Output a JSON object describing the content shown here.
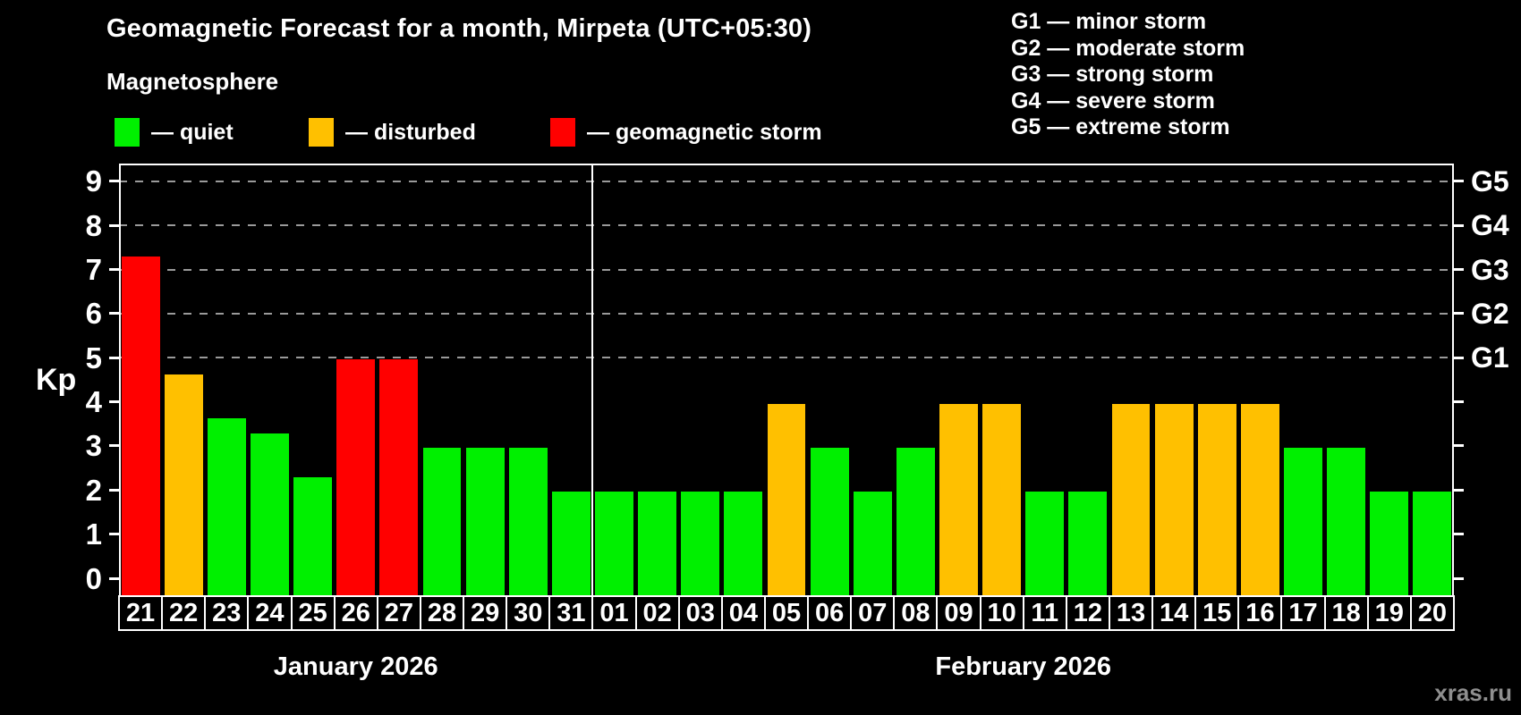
{
  "title": "Geomagnetic Forecast for a month, Mirpeta (UTC+05:30)",
  "subtitle": "Magnetosphere",
  "colors": {
    "quiet": "#00f000",
    "disturbed": "#ffc000",
    "storm": "#ff0000",
    "grid": "#9a9a9a",
    "axis": "#ffffff",
    "watermark": "#8f8f8f"
  },
  "legend": {
    "items": [
      {
        "key": "quiet",
        "label": "— quiet"
      },
      {
        "key": "disturbed",
        "label": "— disturbed"
      },
      {
        "key": "storm",
        "label": "— geomagnetic storm"
      }
    ]
  },
  "storm_scale_legend": [
    "G1 — minor storm",
    "G2 — moderate storm",
    "G3 — strong storm",
    "G4 — severe storm",
    "G5 — extreme storm"
  ],
  "watermark": "xras.ru",
  "chart_data": {
    "type": "bar",
    "ylabel": "Kp",
    "ylim": [
      -0.45,
      9.4
    ],
    "y_ticks": [
      0,
      1,
      2,
      3,
      4,
      5,
      6,
      7,
      8,
      9
    ],
    "grid": "dashed horizontal lines at Kp 5–9 only",
    "legend_position": "top",
    "right_axis_labels": [
      {
        "kp": 5,
        "label": "G1"
      },
      {
        "kp": 6,
        "label": "G2"
      },
      {
        "kp": 7,
        "label": "G3"
      },
      {
        "kp": 8,
        "label": "G4"
      },
      {
        "kp": 9,
        "label": "G5"
      }
    ],
    "months": [
      {
        "label": "January 2026",
        "days": 11
      },
      {
        "label": "February 2026",
        "days": 20
      }
    ],
    "bars": [
      {
        "day": "21",
        "kp": 7.33,
        "condition": "storm"
      },
      {
        "day": "22",
        "kp": 4.67,
        "condition": "disturbed"
      },
      {
        "day": "23",
        "kp": 3.67,
        "condition": "quiet"
      },
      {
        "day": "24",
        "kp": 3.33,
        "condition": "quiet"
      },
      {
        "day": "25",
        "kp": 2.33,
        "condition": "quiet"
      },
      {
        "day": "26",
        "kp": 5.0,
        "condition": "storm"
      },
      {
        "day": "27",
        "kp": 5.0,
        "condition": "storm"
      },
      {
        "day": "28",
        "kp": 3.0,
        "condition": "quiet"
      },
      {
        "day": "29",
        "kp": 3.0,
        "condition": "quiet"
      },
      {
        "day": "30",
        "kp": 3.0,
        "condition": "quiet"
      },
      {
        "day": "31",
        "kp": 2.0,
        "condition": "quiet"
      },
      {
        "day": "01",
        "kp": 2.0,
        "condition": "quiet"
      },
      {
        "day": "02",
        "kp": 2.0,
        "condition": "quiet"
      },
      {
        "day": "03",
        "kp": 2.0,
        "condition": "quiet"
      },
      {
        "day": "04",
        "kp": 2.0,
        "condition": "quiet"
      },
      {
        "day": "05",
        "kp": 4.0,
        "condition": "disturbed"
      },
      {
        "day": "06",
        "kp": 3.0,
        "condition": "quiet"
      },
      {
        "day": "07",
        "kp": 2.0,
        "condition": "quiet"
      },
      {
        "day": "08",
        "kp": 3.0,
        "condition": "quiet"
      },
      {
        "day": "09",
        "kp": 4.0,
        "condition": "disturbed"
      },
      {
        "day": "10",
        "kp": 4.0,
        "condition": "disturbed"
      },
      {
        "day": "11",
        "kp": 2.0,
        "condition": "quiet"
      },
      {
        "day": "12",
        "kp": 2.0,
        "condition": "quiet"
      },
      {
        "day": "13",
        "kp": 4.0,
        "condition": "disturbed"
      },
      {
        "day": "14",
        "kp": 4.0,
        "condition": "disturbed"
      },
      {
        "day": "15",
        "kp": 4.0,
        "condition": "disturbed"
      },
      {
        "day": "16",
        "kp": 4.0,
        "condition": "disturbed"
      },
      {
        "day": "17",
        "kp": 3.0,
        "condition": "quiet"
      },
      {
        "day": "18",
        "kp": 3.0,
        "condition": "quiet"
      },
      {
        "day": "19",
        "kp": 2.0,
        "condition": "quiet"
      },
      {
        "day": "20",
        "kp": 2.0,
        "condition": "quiet"
      }
    ]
  }
}
